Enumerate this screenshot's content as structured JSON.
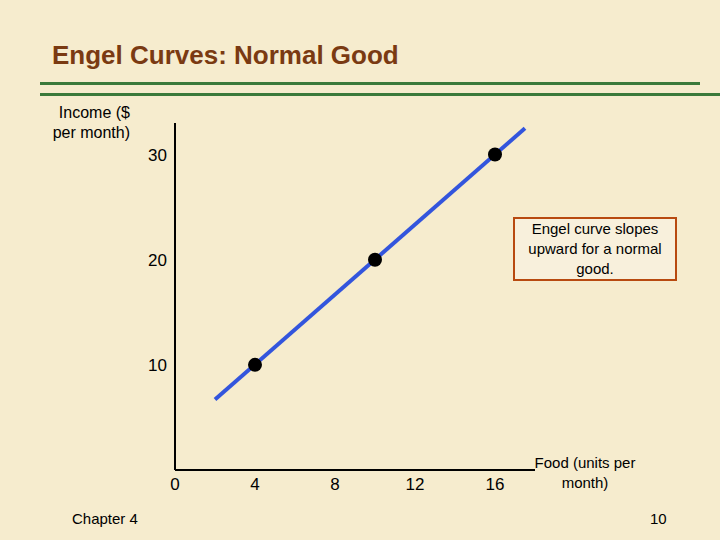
{
  "chart_data": {
    "type": "line",
    "title": "Engel Curves: Normal Good",
    "x_label": "Food (units per month)",
    "y_label": "Income ($ per month)",
    "annotation": "Engel curve slopes upward for a normal good.",
    "footer_left": "Chapter 4",
    "footer_right": "10",
    "xlim": [
      0,
      18
    ],
    "xticks": [
      0,
      4,
      8,
      12,
      16
    ],
    "ylim": [
      0,
      33
    ],
    "yticks": [
      10,
      20,
      30
    ],
    "grid": false,
    "series": [
      {
        "type": "line",
        "color": "#3355dd",
        "marker": "none",
        "x": [
          2,
          17.5
        ],
        "values": [
          6.7,
          32.5
        ]
      },
      {
        "type": "scatter",
        "color": "#000000",
        "marker": "circle",
        "x": [
          4,
          10,
          16
        ],
        "values": [
          10,
          20,
          30
        ]
      }
    ]
  }
}
